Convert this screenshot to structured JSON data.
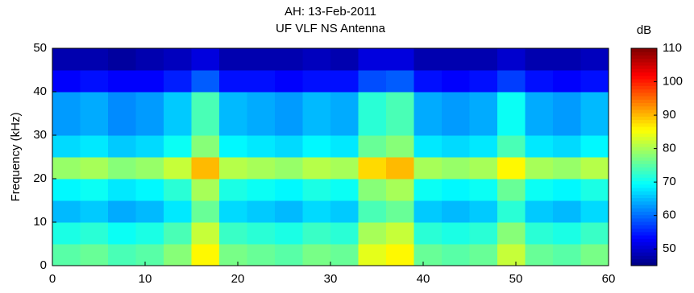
{
  "chart_data": {
    "type": "heatmap",
    "title": "AH: 13-Feb-2011",
    "subtitle": "UF VLF NS Antenna",
    "ylabel": "Frequency (kHz)",
    "colorbar_label": "dB",
    "colormap": "jet",
    "x_edges": [
      0,
      3,
      6,
      9,
      12,
      15,
      18,
      21,
      24,
      27,
      30,
      33,
      36,
      39,
      42,
      45,
      48,
      51,
      54,
      57,
      60
    ],
    "y_edges": [
      0,
      5,
      10,
      15,
      20,
      25,
      30,
      35,
      40,
      45,
      50
    ],
    "z": [
      [
        75,
        76,
        74,
        75,
        78,
        86,
        77,
        76,
        75,
        77,
        76,
        84,
        86,
        76,
        75,
        76,
        82,
        76,
        75,
        77
      ],
      [
        71,
        72,
        70,
        71,
        74,
        82,
        73,
        72,
        71,
        73,
        72,
        80,
        82,
        72,
        71,
        72,
        78,
        72,
        71,
        73
      ],
      [
        65,
        66,
        64,
        65,
        68,
        76,
        67,
        66,
        65,
        67,
        66,
        74,
        76,
        66,
        65,
        66,
        72,
        66,
        65,
        67
      ],
      [
        69,
        70,
        68,
        69,
        72,
        80,
        71,
        70,
        69,
        71,
        70,
        78,
        80,
        70,
        69,
        70,
        76,
        70,
        69,
        71
      ],
      [
        79,
        80,
        78,
        79,
        82,
        90,
        81,
        80,
        79,
        81,
        80,
        88,
        90,
        80,
        79,
        80,
        86,
        80,
        79,
        81
      ],
      [
        67,
        68,
        66,
        67,
        70,
        78,
        69,
        68,
        67,
        69,
        68,
        76,
        78,
        68,
        67,
        68,
        74,
        68,
        67,
        69
      ],
      [
        63,
        64,
        62,
        63,
        66,
        74,
        65,
        64,
        63,
        65,
        64,
        72,
        74,
        64,
        63,
        64,
        70,
        64,
        63,
        65
      ],
      [
        63,
        64,
        62,
        63,
        66,
        74,
        65,
        64,
        63,
        65,
        64,
        72,
        74,
        64,
        63,
        64,
        70,
        64,
        63,
        65
      ],
      [
        53,
        54,
        53,
        53,
        55,
        59,
        54,
        54,
        53,
        54,
        54,
        58,
        59,
        54,
        53,
        54,
        57,
        54,
        53,
        54
      ],
      [
        48,
        48,
        47,
        48,
        49,
        51,
        48,
        48,
        48,
        49,
        48,
        51,
        51,
        48,
        48,
        48,
        50,
        48,
        48,
        49
      ]
    ],
    "xlim": [
      0,
      60
    ],
    "xticks": [
      0,
      10,
      20,
      30,
      40,
      50,
      60
    ],
    "ylim": [
      0,
      50
    ],
    "yticks": [
      0,
      10,
      20,
      30,
      40,
      50
    ],
    "clim": [
      45,
      110
    ],
    "cticks": [
      50,
      60,
      70,
      80,
      90,
      100,
      110
    ]
  }
}
